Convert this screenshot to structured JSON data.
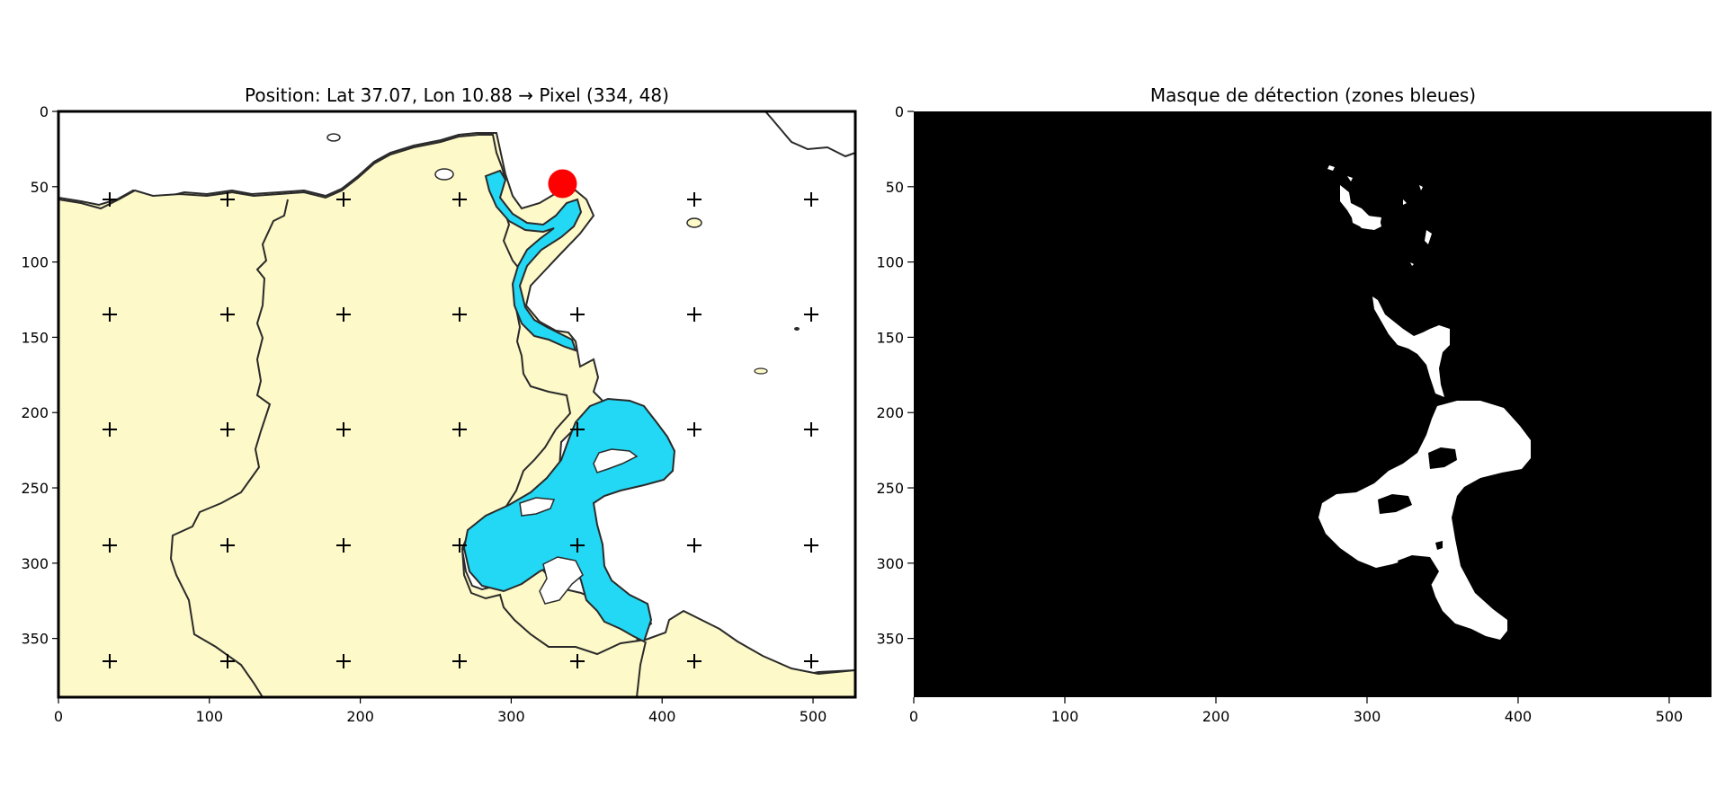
{
  "chart_data": [
    {
      "type": "image",
      "title": "Position: Lat 37.07, Lon 10.88 → Pixel (334, 48)",
      "xlim": [
        0,
        528
      ],
      "ylim": [
        389,
        0
      ],
      "x_ticks": [
        0,
        100,
        200,
        300,
        400,
        500
      ],
      "y_ticks": [
        0,
        50,
        100,
        150,
        200,
        250,
        300,
        350
      ],
      "marker": {
        "x": 334,
        "y": 48,
        "color": "#ff0000"
      },
      "colors": {
        "land": "#fdf9c8",
        "sea": "#ffffff",
        "detected_blue": "#22d8f4",
        "coast": "#222222"
      }
    },
    {
      "type": "image",
      "title": "Masque de détection (zones bleues)",
      "xlim": [
        0,
        528
      ],
      "ylim": [
        389,
        0
      ],
      "x_ticks": [
        0,
        100,
        200,
        300,
        400,
        500
      ],
      "y_ticks": [
        0,
        50,
        100,
        150,
        200,
        250,
        300,
        350
      ],
      "colors": {
        "background": "#000000",
        "mask": "#ffffff"
      }
    }
  ]
}
